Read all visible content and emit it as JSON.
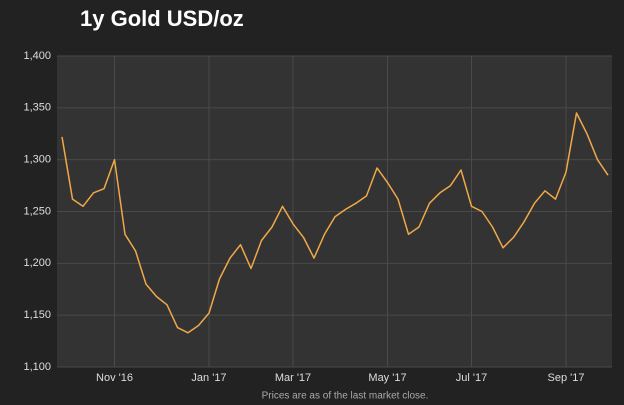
{
  "chart_data": {
    "type": "line",
    "title": "1y Gold USD/oz",
    "footnote": "Prices are as of the last market close.",
    "categories": [
      null,
      null,
      null,
      null,
      null,
      "Nov '16",
      null,
      null,
      null,
      null,
      null,
      null,
      null,
      null,
      "Jan '17",
      null,
      null,
      null,
      null,
      null,
      null,
      null,
      "Mar '17",
      null,
      null,
      null,
      null,
      null,
      null,
      null,
      null,
      "May '17",
      null,
      null,
      null,
      null,
      null,
      null,
      null,
      "Jul '17",
      null,
      null,
      null,
      null,
      null,
      null,
      null,
      null,
      "Sep '17",
      null,
      null,
      null,
      null
    ],
    "series": [
      {
        "name": "Gold",
        "color": "#f0a848",
        "values": [
          1322,
          1262,
          1255,
          1268,
          1272,
          1300,
          1228,
          1212,
          1180,
          1168,
          1160,
          1138,
          1133,
          1140,
          1152,
          1185,
          1205,
          1218,
          1195,
          1222,
          1235,
          1255,
          1238,
          1225,
          1205,
          1228,
          1245,
          1252,
          1258,
          1265,
          1292,
          1278,
          1262,
          1228,
          1235,
          1258,
          1268,
          1275,
          1290,
          1255,
          1250,
          1235,
          1215,
          1225,
          1240,
          1258,
          1270,
          1262,
          1288,
          1345,
          1325,
          1300,
          1285
        ]
      }
    ],
    "ylim": [
      1100,
      1400
    ],
    "yticks": [
      {
        "value": 1100,
        "label": "1,100"
      },
      {
        "value": 1150,
        "label": "1,150"
      },
      {
        "value": 1200,
        "label": "1,200"
      },
      {
        "value": 1250,
        "label": "1,250"
      },
      {
        "value": 1300,
        "label": "1,300"
      },
      {
        "value": 1350,
        "label": "1,350"
      },
      {
        "value": 1400,
        "label": "1,400"
      }
    ],
    "grid": true
  }
}
